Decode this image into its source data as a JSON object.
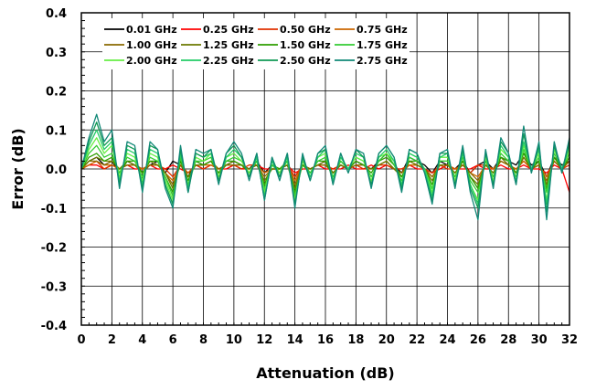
{
  "chart_data": {
    "type": "line",
    "title": "",
    "xlabel": "Attenuation (dB)",
    "ylabel": "Error (dB)",
    "xlim": [
      0,
      32
    ],
    "ylim": [
      -0.4,
      0.4
    ],
    "x_ticks": [
      0,
      2,
      4,
      6,
      8,
      10,
      12,
      14,
      16,
      18,
      20,
      22,
      24,
      26,
      28,
      30,
      32
    ],
    "x_tick_labels": [
      "0",
      "2",
      "4",
      "6",
      "8",
      "10",
      "12",
      "14",
      "16",
      "18",
      "20",
      "22",
      "24",
      "26",
      "28",
      "30",
      "32"
    ],
    "y_ticks": [
      -0.4,
      -0.3,
      -0.2,
      -0.1,
      0.0,
      0.1,
      0.2,
      0.3,
      0.4
    ],
    "y_tick_labels": [
      "-0.4",
      "-0.3",
      "-0.2",
      "-0.1",
      "0.0",
      "0.1",
      "0.2",
      "0.3",
      "0.4"
    ],
    "grid": true,
    "legend_position": "top-left",
    "x": [
      0,
      0.5,
      1,
      1.5,
      2,
      2.5,
      3,
      3.5,
      4,
      4.5,
      5,
      5.5,
      6,
      6.5,
      7,
      7.5,
      8,
      8.5,
      9,
      9.5,
      10,
      10.5,
      11,
      11.5,
      12,
      12.5,
      13,
      13.5,
      14,
      14.5,
      15,
      15.5,
      16,
      16.5,
      17,
      17.5,
      18,
      18.5,
      19,
      19.5,
      20,
      20.5,
      21,
      21.5,
      22,
      22.5,
      23,
      23.5,
      24,
      24.5,
      25,
      25.5,
      26,
      26.5,
      27,
      27.5,
      28,
      28.5,
      29,
      29.5,
      30,
      30.5,
      31,
      31.5,
      32
    ],
    "series": [
      {
        "name": "0.01 GHz",
        "color": "#000000",
        "values": [
          0,
          0.02,
          0.03,
          0.01,
          0.02,
          -0.01,
          0.02,
          0.01,
          0,
          0.01,
          0.02,
          -0.01,
          0.02,
          0.01,
          -0.02,
          0.02,
          0.01,
          0.02,
          -0.01,
          0.01,
          0.02,
          0.01,
          0,
          0.02,
          -0.01,
          0.01,
          0,
          0.01,
          -0.02,
          0.01,
          0,
          0.01,
          0.02,
          -0.01,
          0.01,
          0,
          0.02,
          0.01,
          0,
          0.02,
          0.04,
          0.01,
          -0.01,
          0.03,
          0.02,
          0.01,
          -0.01,
          0.02,
          0.01,
          0,
          0.02,
          -0.01,
          0.01,
          0.02,
          0,
          0.03,
          0.02,
          0.01,
          0.04,
          0.01,
          0.02,
          -0.02,
          0.03,
          0.01,
          0.02
        ]
      },
      {
        "name": "0.25 GHz",
        "color": "#ff0000",
        "values": [
          0,
          0.01,
          0.01,
          0,
          0.01,
          0,
          0.01,
          0,
          0,
          0.01,
          0,
          0,
          0.01,
          0,
          -0.01,
          0.01,
          0,
          0.01,
          0,
          0,
          0.01,
          0,
          0,
          0.01,
          0,
          0,
          0,
          0.01,
          -0.01,
          0,
          0,
          0.01,
          0,
          0,
          0,
          0.01,
          0,
          0,
          0.01,
          0,
          0.01,
          0,
          0,
          0.01,
          0,
          0,
          -0.01,
          0,
          0.01,
          0,
          0,
          0,
          0.01,
          0,
          0,
          0.01,
          0,
          0,
          0.01,
          0,
          0,
          -0.01,
          0.01,
          0,
          -0.06
        ]
      },
      {
        "name": "0.50 GHz",
        "color": "#e03000",
        "values": [
          0,
          0.01,
          0.02,
          0,
          0.01,
          0,
          0.01,
          0.01,
          0,
          0.01,
          0.01,
          0,
          -0.02,
          0.01,
          -0.01,
          0.01,
          0,
          0.01,
          0,
          0.01,
          0.01,
          0,
          0.01,
          0.01,
          -0.01,
          0,
          0,
          0.01,
          -0.02,
          0.01,
          0,
          0.01,
          0.01,
          0,
          0.01,
          0,
          0.01,
          0,
          0,
          0.01,
          0.01,
          0,
          0,
          0.01,
          0.01,
          0,
          -0.01,
          0.01,
          0,
          0,
          0.01,
          -0.01,
          0.01,
          0.01,
          0,
          0.02,
          0.01,
          0,
          0.02,
          0,
          0.01,
          -0.02,
          0.02,
          0,
          0.01
        ]
      },
      {
        "name": "0.75 GHz",
        "color": "#cc6600",
        "values": [
          0,
          0.01,
          0.02,
          0.01,
          0.01,
          0,
          0.01,
          0.01,
          0,
          0.01,
          0.01,
          -0.01,
          -0.03,
          0.01,
          -0.01,
          0.01,
          0.01,
          0.01,
          0,
          0.01,
          0.01,
          0.01,
          0,
          0.01,
          -0.01,
          0,
          0,
          0.01,
          -0.03,
          0.01,
          0,
          0.01,
          0.01,
          -0.01,
          0.01,
          0,
          0.01,
          0.01,
          0,
          0.01,
          0.02,
          0,
          -0.01,
          0.01,
          0.01,
          0,
          -0.02,
          0.01,
          0.01,
          0,
          0.01,
          -0.01,
          -0.02,
          0.01,
          0,
          0.02,
          0.01,
          0,
          0.02,
          0,
          0.01,
          -0.02,
          0.02,
          0,
          0.02
        ]
      },
      {
        "name": "1.00 GHz",
        "color": "#8a6a00",
        "values": [
          0,
          0.02,
          0.02,
          0.01,
          0.02,
          0,
          0.01,
          0.01,
          -0.01,
          0.01,
          0.01,
          -0.01,
          -0.04,
          0.01,
          -0.02,
          0.01,
          0.01,
          0.02,
          0,
          0.01,
          0.01,
          0.01,
          0,
          0.01,
          -0.02,
          0,
          0,
          0.01,
          -0.04,
          0.01,
          0,
          0.01,
          0.01,
          -0.01,
          0.01,
          0,
          0.01,
          0.01,
          0,
          0.01,
          0.02,
          0,
          -0.01,
          0.02,
          0.01,
          0,
          -0.02,
          0.01,
          0.01,
          -0.01,
          0.01,
          -0.01,
          -0.03,
          0.01,
          -0.01,
          0.02,
          0.01,
          -0.01,
          0.03,
          0,
          0.01,
          -0.03,
          0.02,
          0,
          0.02
        ]
      },
      {
        "name": "1.25 GHz",
        "color": "#6b7a00",
        "values": [
          0,
          0.02,
          0.03,
          0.02,
          0.02,
          0,
          0.02,
          0.01,
          -0.01,
          0.02,
          0.01,
          -0.01,
          -0.05,
          0.02,
          -0.02,
          0.01,
          0.01,
          0.02,
          -0.01,
          0.01,
          0.02,
          0.01,
          0,
          0.01,
          -0.03,
          0,
          0,
          0.01,
          -0.05,
          0.01,
          0,
          0.01,
          0.02,
          -0.01,
          0.01,
          0,
          0.02,
          0.01,
          0,
          0.01,
          0.02,
          0,
          -0.02,
          0.02,
          0.01,
          0,
          -0.03,
          0.01,
          0.01,
          -0.01,
          0.02,
          -0.02,
          -0.04,
          0.01,
          -0.01,
          0.03,
          0.01,
          -0.01,
          0.03,
          0,
          0.02,
          -0.04,
          0.03,
          0,
          0.03
        ]
      },
      {
        "name": "1.50 GHz",
        "color": "#2e9e00",
        "values": [
          0,
          0.03,
          0.04,
          0.02,
          0.03,
          -0.01,
          0.02,
          0.02,
          -0.01,
          0.02,
          0.02,
          -0.02,
          -0.06,
          0.02,
          -0.03,
          0.02,
          0.01,
          0.02,
          -0.01,
          0.02,
          0.02,
          0.01,
          -0.01,
          0.02,
          -0.04,
          0.01,
          0,
          0.02,
          -0.06,
          0.01,
          -0.01,
          0.02,
          0.02,
          -0.02,
          0.02,
          0,
          0.02,
          0.01,
          -0.01,
          0.02,
          0.03,
          0.01,
          -0.02,
          0.02,
          0.02,
          0,
          -0.04,
          0.02,
          0.02,
          -0.02,
          0.02,
          -0.02,
          -0.05,
          0.02,
          -0.02,
          0.03,
          0.02,
          -0.01,
          0.04,
          0,
          0.02,
          -0.05,
          0.03,
          0,
          0.03
        ]
      },
      {
        "name": "1.75 GHz",
        "color": "#33cc33",
        "values": [
          0,
          0.04,
          0.06,
          0.03,
          0.04,
          -0.01,
          0.03,
          0.02,
          -0.02,
          0.03,
          0.02,
          -0.02,
          -0.07,
          0.03,
          -0.04,
          0.02,
          0.02,
          0.03,
          -0.02,
          0.02,
          0.03,
          0.02,
          -0.01,
          0.02,
          -0.05,
          0.01,
          -0.01,
          0.02,
          -0.07,
          0.02,
          -0.01,
          0.02,
          0.03,
          -0.02,
          0.02,
          0,
          0.03,
          0.02,
          -0.02,
          0.02,
          0.04,
          0.01,
          -0.03,
          0.03,
          0.02,
          0,
          -0.05,
          0.02,
          0.02,
          -0.02,
          0.03,
          -0.03,
          -0.06,
          0.02,
          -0.02,
          0.04,
          0.02,
          -0.02,
          0.05,
          0,
          0.03,
          -0.06,
          0.04,
          0,
          0.04
        ]
      },
      {
        "name": "2.00 GHz",
        "color": "#66ee44",
        "values": [
          0,
          0.05,
          0.08,
          0.04,
          0.06,
          -0.02,
          0.04,
          0.03,
          -0.03,
          0.04,
          0.03,
          -0.03,
          -0.08,
          0.04,
          -0.05,
          0.03,
          0.02,
          0.04,
          -0.02,
          0.03,
          0.04,
          0.02,
          -0.01,
          0.03,
          -0.06,
          0.02,
          -0.01,
          0.03,
          -0.08,
          0.02,
          -0.02,
          0.03,
          0.04,
          -0.03,
          0.03,
          0,
          0.03,
          0.02,
          -0.03,
          0.03,
          0.04,
          0.02,
          -0.04,
          0.04,
          0.03,
          0,
          -0.06,
          0.03,
          0.03,
          -0.03,
          0.04,
          -0.04,
          -0.08,
          0.03,
          -0.03,
          0.05,
          0.03,
          -0.03,
          0.06,
          0,
          0.04,
          -0.08,
          0.05,
          0,
          0.05
        ]
      },
      {
        "name": "2.25 GHz",
        "color": "#22cc66",
        "values": [
          0,
          0.06,
          0.1,
          0.05,
          0.07,
          -0.03,
          0.05,
          0.04,
          -0.04,
          0.05,
          0.04,
          -0.04,
          -0.09,
          0.04,
          -0.05,
          0.04,
          0.03,
          0.04,
          -0.03,
          0.03,
          0.05,
          0.03,
          -0.02,
          0.03,
          -0.07,
          0.02,
          -0.02,
          0.03,
          -0.09,
          0.03,
          -0.02,
          0.03,
          0.05,
          -0.03,
          0.03,
          0,
          0.04,
          0.03,
          -0.04,
          0.03,
          0.05,
          0.02,
          -0.04,
          0.04,
          0.03,
          0,
          -0.07,
          0.03,
          0.04,
          -0.04,
          0.04,
          -0.04,
          -0.09,
          0.04,
          -0.04,
          0.06,
          0.03,
          -0.03,
          0.07,
          0,
          0.05,
          -0.09,
          0.06,
          0,
          0.06
        ]
      },
      {
        "name": "2.50 GHz",
        "color": "#119955",
        "values": [
          0,
          0.07,
          0.12,
          0.06,
          0.08,
          -0.04,
          0.06,
          0.05,
          -0.05,
          0.06,
          0.05,
          -0.04,
          -0.09,
          0.05,
          -0.06,
          0.04,
          0.03,
          0.05,
          -0.03,
          0.04,
          0.06,
          0.03,
          -0.02,
          0.04,
          -0.08,
          0.03,
          -0.02,
          0.04,
          -0.09,
          0.03,
          -0.03,
          0.04,
          0.05,
          -0.04,
          0.04,
          -0.01,
          0.05,
          0.03,
          -0.04,
          0.04,
          0.06,
          0.03,
          -0.05,
          0.05,
          0.04,
          -0.01,
          -0.08,
          0.04,
          0.04,
          -0.04,
          0.05,
          -0.05,
          -0.1,
          0.04,
          -0.04,
          0.07,
          0.04,
          -0.04,
          0.09,
          -0.01,
          0.06,
          -0.11,
          0.06,
          -0.01,
          0.07
        ]
      },
      {
        "name": "2.75 GHz",
        "color": "#118877",
        "values": [
          0,
          0.08,
          0.14,
          0.07,
          0.1,
          -0.05,
          0.07,
          0.06,
          -0.06,
          0.07,
          0.05,
          -0.05,
          -0.1,
          0.06,
          -0.06,
          0.05,
          0.04,
          0.05,
          -0.04,
          0.04,
          0.07,
          0.04,
          -0.03,
          0.04,
          -0.08,
          0.03,
          -0.03,
          0.04,
          -0.1,
          0.04,
          -0.03,
          0.04,
          0.06,
          -0.04,
          0.04,
          -0.01,
          0.05,
          0.04,
          -0.05,
          0.04,
          0.06,
          0.03,
          -0.06,
          0.05,
          0.04,
          -0.01,
          -0.09,
          0.04,
          0.05,
          -0.05,
          0.06,
          -0.06,
          -0.13,
          0.05,
          -0.05,
          0.08,
          0.04,
          -0.04,
          0.11,
          -0.01,
          0.07,
          -0.13,
          0.07,
          -0.01,
          0.08
        ]
      }
    ]
  }
}
